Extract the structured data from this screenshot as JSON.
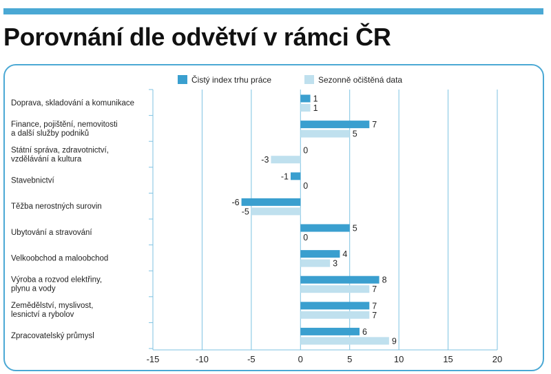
{
  "page": {
    "title": "Porovnání dle odvětví v rámci ČR",
    "accent_color": "#4aa8d4"
  },
  "chart_data": {
    "type": "bar",
    "orientation": "horizontal",
    "categories": [
      [
        "Doprava, skladování a komunikace"
      ],
      [
        "Finance, pojištění, nemovitosti",
        "a další služby podniků"
      ],
      [
        "Státní správa, zdravotnictví,",
        "vzdělávání a kultura"
      ],
      [
        "Stavebnictví"
      ],
      [
        "Těžba nerostných surovin"
      ],
      [
        "Ubytování a stravování"
      ],
      [
        "Velkoobchod a maloobchod"
      ],
      [
        "Výroba a rozvod elektřiny,",
        "plynu a vody"
      ],
      [
        "Zemědělství, myslivost,",
        "lesnictví a rybolov"
      ],
      [
        "Zpracovatelský průmysl"
      ]
    ],
    "series": [
      {
        "name": "Čistý index trhu práce",
        "color": "#3a9fcf",
        "values": [
          1,
          7,
          0,
          -1,
          -6,
          5,
          4,
          8,
          7,
          6
        ]
      },
      {
        "name": "Sezonně očištěná data",
        "color": "#bfe0ee",
        "values": [
          1,
          5,
          -3,
          0,
          -5,
          0,
          3,
          7,
          7,
          9
        ]
      }
    ],
    "xlim": [
      -15,
      20
    ],
    "xticks": [
      -15,
      -10,
      -5,
      0,
      5,
      10,
      15,
      20
    ],
    "grid": "vertical",
    "legend": "top"
  }
}
